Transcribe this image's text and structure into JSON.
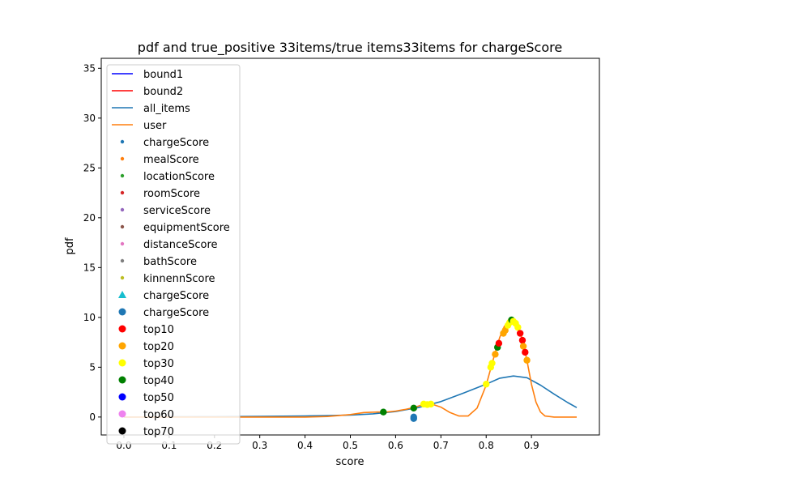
{
  "chart_data": {
    "type": "line",
    "title": "pdf and true_positive 33items/true items33items for chargeScore",
    "xlabel": "score",
    "ylabel": "pdf",
    "xlim": [
      -0.05,
      1.05
    ],
    "ylim": [
      -1.8,
      36
    ],
    "xticks": [
      0.0,
      0.1,
      0.2,
      0.3,
      0.4,
      0.5,
      0.6,
      0.7,
      0.8,
      0.9
    ],
    "xtick_labels": [
      "0.0",
      "0.1",
      "0.2",
      "0.3",
      "0.4",
      "0.5",
      "0.6",
      "0.7",
      "0.8",
      "0.9"
    ],
    "yticks": [
      0,
      5,
      10,
      15,
      20,
      25,
      30,
      35
    ],
    "ytick_labels": [
      "0",
      "5",
      "10",
      "15",
      "20",
      "25",
      "30",
      "35"
    ],
    "legend_position": "upper-left",
    "legend": [
      {
        "label": "bound1",
        "marker": "line",
        "color": "#0000ff"
      },
      {
        "label": "bound2",
        "marker": "line",
        "color": "#ff0000"
      },
      {
        "label": "all_items",
        "marker": "line",
        "color": "#1f77b4"
      },
      {
        "label": "user",
        "marker": "line",
        "color": "#ff7f0e"
      },
      {
        "label": "chargeScore",
        "marker": "small-dot",
        "color": "#1f77b4"
      },
      {
        "label": "mealScore",
        "marker": "small-dot",
        "color": "#ff7f0e"
      },
      {
        "label": "locationScore",
        "marker": "small-dot",
        "color": "#2ca02c"
      },
      {
        "label": "roomScore",
        "marker": "small-dot",
        "color": "#d62728"
      },
      {
        "label": "serviceScore",
        "marker": "small-dot",
        "color": "#9467bd"
      },
      {
        "label": "equipmentScore",
        "marker": "small-dot",
        "color": "#8c564b"
      },
      {
        "label": "distanceScore",
        "marker": "small-dot",
        "color": "#e377c2"
      },
      {
        "label": "bathScore",
        "marker": "small-dot",
        "color": "#7f7f7f"
      },
      {
        "label": "kinnennScore",
        "marker": "small-dot",
        "color": "#bcbd22"
      },
      {
        "label": "chargeScore",
        "marker": "triangle",
        "color": "#17becf"
      },
      {
        "label": "chargeScore",
        "marker": "dot",
        "color": "#1f77b4"
      },
      {
        "label": "top10",
        "marker": "dot",
        "color": "#ff0000"
      },
      {
        "label": "top20",
        "marker": "dot",
        "color": "#ffa500"
      },
      {
        "label": "top30",
        "marker": "dot",
        "color": "#ffff00"
      },
      {
        "label": "top40",
        "marker": "dot",
        "color": "#008000"
      },
      {
        "label": "top50",
        "marker": "dot",
        "color": "#0000ff"
      },
      {
        "label": "top60",
        "marker": "dot",
        "color": "#ee82ee"
      },
      {
        "label": "top70",
        "marker": "dot",
        "color": "#000000"
      }
    ],
    "series": [
      {
        "name": "all_items",
        "color": "#1f77b4",
        "x": [
          0.0,
          0.1,
          0.2,
          0.3,
          0.4,
          0.45,
          0.5,
          0.55,
          0.6,
          0.65,
          0.7,
          0.75,
          0.8,
          0.83,
          0.86,
          0.89,
          0.92,
          0.95,
          0.98,
          1.0
        ],
        "y": [
          0.0,
          0.02,
          0.04,
          0.07,
          0.11,
          0.14,
          0.2,
          0.32,
          0.55,
          0.95,
          1.55,
          2.4,
          3.3,
          3.9,
          4.12,
          3.95,
          3.2,
          2.3,
          1.45,
          0.95
        ]
      },
      {
        "name": "user",
        "color": "#ff7f0e",
        "x": [
          0.0,
          0.1,
          0.2,
          0.3,
          0.4,
          0.45,
          0.5,
          0.53,
          0.56,
          0.58,
          0.6,
          0.62,
          0.64,
          0.66,
          0.68,
          0.7,
          0.72,
          0.74,
          0.76,
          0.78,
          0.8,
          0.82,
          0.83,
          0.84,
          0.85,
          0.86,
          0.87,
          0.88,
          0.89,
          0.9,
          0.91,
          0.92,
          0.93,
          0.95,
          1.0
        ],
        "y": [
          0.0,
          0.0,
          0.0,
          0.0,
          0.0,
          0.05,
          0.25,
          0.45,
          0.5,
          0.5,
          0.6,
          0.75,
          0.95,
          1.25,
          1.3,
          1.0,
          0.45,
          0.1,
          0.1,
          0.9,
          3.2,
          6.5,
          8.0,
          9.1,
          9.6,
          9.75,
          9.2,
          7.8,
          5.7,
          3.3,
          1.5,
          0.5,
          0.1,
          0.0,
          0.0
        ]
      }
    ],
    "points": [
      {
        "x": 0.573,
        "y": 0.5,
        "color": "#008000"
      },
      {
        "x": 0.64,
        "y": 0.9,
        "color": "#008000"
      },
      {
        "x": 0.64,
        "y": 0.0,
        "color": "#1f77b4"
      },
      {
        "x": 0.64,
        "y": -0.15,
        "color": "#1f77b4"
      },
      {
        "x": 0.662,
        "y": 1.3,
        "color": "#ffff00"
      },
      {
        "x": 0.67,
        "y": 1.25,
        "color": "#ffff00"
      },
      {
        "x": 0.678,
        "y": 1.3,
        "color": "#ffff00"
      },
      {
        "x": 0.8,
        "y": 3.3,
        "color": "#ffff00"
      },
      {
        "x": 0.81,
        "y": 5.0,
        "color": "#ffff00"
      },
      {
        "x": 0.813,
        "y": 5.4,
        "color": "#ffff00"
      },
      {
        "x": 0.82,
        "y": 6.3,
        "color": "#ffa500"
      },
      {
        "x": 0.825,
        "y": 7.0,
        "color": "#008000"
      },
      {
        "x": 0.828,
        "y": 7.4,
        "color": "#ff0000"
      },
      {
        "x": 0.838,
        "y": 8.4,
        "color": "#ffa500"
      },
      {
        "x": 0.842,
        "y": 8.7,
        "color": "#ffa500"
      },
      {
        "x": 0.848,
        "y": 9.2,
        "color": "#ffff00"
      },
      {
        "x": 0.852,
        "y": 9.5,
        "color": "#ffff00"
      },
      {
        "x": 0.856,
        "y": 9.75,
        "color": "#008000"
      },
      {
        "x": 0.86,
        "y": 9.6,
        "color": "#ffff00"
      },
      {
        "x": 0.865,
        "y": 9.4,
        "color": "#ffff00"
      },
      {
        "x": 0.87,
        "y": 9.0,
        "color": "#ffff00"
      },
      {
        "x": 0.875,
        "y": 8.4,
        "color": "#ff0000"
      },
      {
        "x": 0.88,
        "y": 7.7,
        "color": "#ff0000"
      },
      {
        "x": 0.882,
        "y": 7.1,
        "color": "#ffa500"
      },
      {
        "x": 0.886,
        "y": 6.5,
        "color": "#ff0000"
      },
      {
        "x": 0.89,
        "y": 5.7,
        "color": "#ffa500"
      }
    ]
  }
}
